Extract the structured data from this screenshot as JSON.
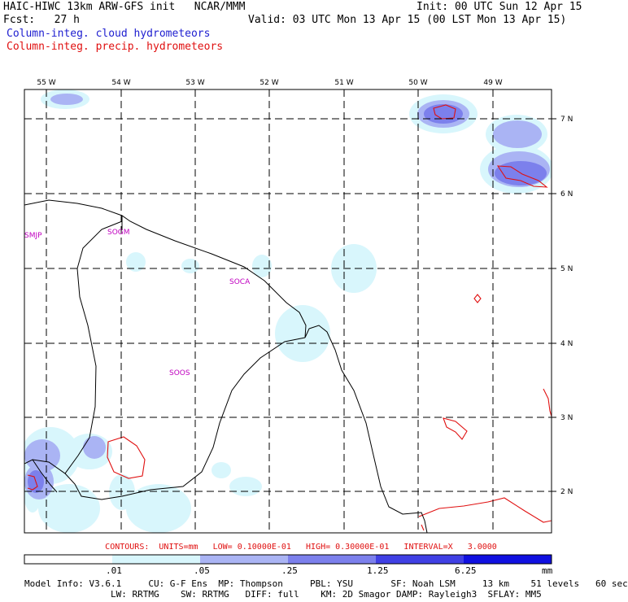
{
  "header": {
    "title_left": "HAIC-HIWC 13km ARW-GFS init   NCAR/MMM",
    "init": "Init: 00 UTC Sun 12 Apr 15",
    "fcst": "Fcst:   27 h",
    "valid": "Valid: 03 UTC Mon 13 Apr 15 (00 LST Mon 13 Apr 15)",
    "legend_cloud": "Column-integ. cloud hydrometeors",
    "legend_precip": "Column-integ. precip. hydrometeors"
  },
  "colors": {
    "cloud_text": "#2020d0",
    "precip": "#e01010",
    "level1": "#d8f6fc",
    "level2": "#aab4f4",
    "level3": "#7c80ec",
    "level4": "#4040e4",
    "level5": "#1010e0",
    "station_label": "#c000c0"
  },
  "map": {
    "lon_labels": [
      "55 W",
      "54 W",
      "53 W",
      "52 W",
      "51 W",
      "50 W",
      "49 W"
    ],
    "lat_labels": [
      "7 N",
      "6 N",
      "5 N",
      "4 N",
      "3 N",
      "2 N"
    ],
    "stations": [
      "SMJP",
      "SOGM",
      "SOCA",
      "SOOS"
    ]
  },
  "contours_line": "CONTOURS:  UNITS=mm   LOW= 0.10000E-01   HIGH= 0.30000E-01   INTERVAL=X   3.0000",
  "colorbar": {
    "labels": [
      ".01",
      ".05",
      ".25",
      "1.25",
      "6.25"
    ],
    "unit": "mm"
  },
  "footer": {
    "line1": "Model Info: V3.6.1     CU: G-F Ens  MP: Thompson     PBL: YSU       SF: Noah LSM     13 km    51 levels   60 sec",
    "line2": "                LW: RRTMG    SW: RRTMG   DIFF: full    KM: 2D Smagor DAMP: Rayleigh3  SFLAY: MM5"
  }
}
